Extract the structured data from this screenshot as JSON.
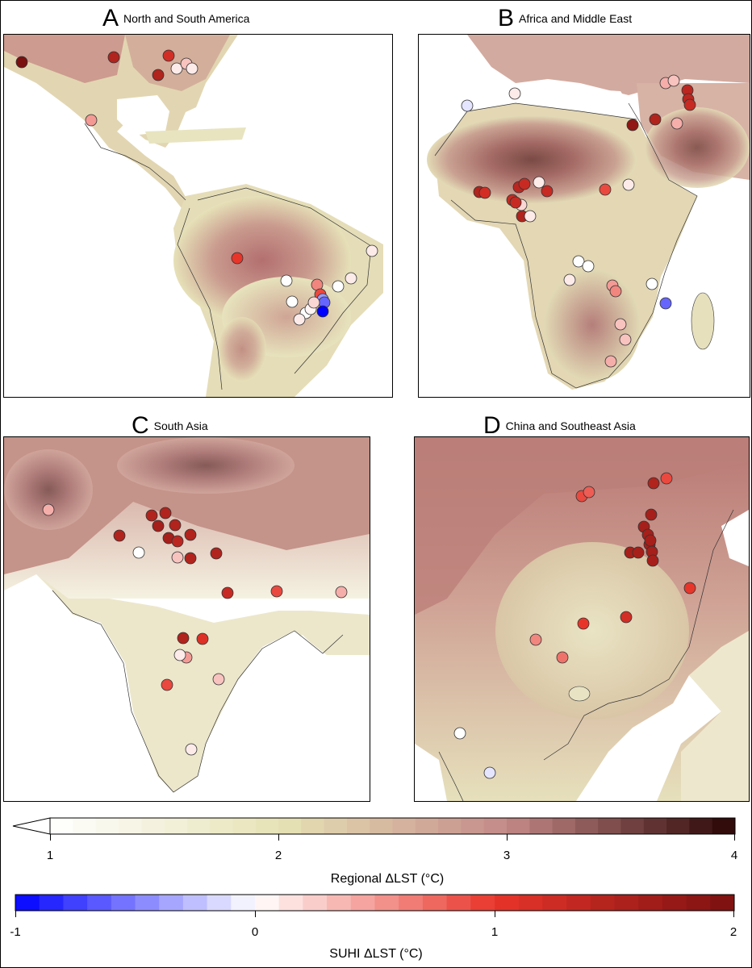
{
  "panels": [
    {
      "letter": "A",
      "title": "North and South America"
    },
    {
      "letter": "B",
      "title": "Africa and Middle East"
    },
    {
      "letter": "C",
      "title": "South Asia"
    },
    {
      "letter": "D",
      "title": "China and Southeast Asia"
    }
  ],
  "colorbars": {
    "regional": {
      "label": "Regional ΔLST (°C)",
      "ticks": [
        "1",
        "2",
        "3",
        "4"
      ],
      "range": [
        1,
        4
      ],
      "colors": [
        "#ffffff",
        "#e7e3b6",
        "#c48a88",
        "#2a0404"
      ]
    },
    "suhi": {
      "label": "SUHI ΔLST (°C)",
      "ticks": [
        "-1",
        "0",
        "1",
        "2"
      ],
      "range": [
        -1,
        2
      ],
      "colors": [
        "#0000ff",
        "#ffffff",
        "#e8352a",
        "#7a1010"
      ]
    }
  },
  "points": {
    "A": [
      2.0,
      1.5,
      1.2,
      1.5,
      0.1,
      0.3,
      0.1,
      0.5,
      1.0,
      0.1,
      0.0,
      0.1,
      0.6,
      0.9,
      0.0,
      0.0,
      -0.4,
      -0.6,
      -1.0,
      0.0,
      0.1,
      0.05,
      0.2
    ],
    "B": [
      -0.1,
      0.1,
      0.4,
      0.3,
      1.4,
      1.4,
      1.3,
      0.4,
      1.5,
      1.5,
      1.2,
      1.4,
      1.3,
      1.3,
      0.1,
      0.2,
      1.3,
      1.3,
      0.9,
      0.1,
      1.8,
      1.5,
      0.1,
      0.0,
      0.0,
      0.1,
      0.5,
      0.6,
      0.0,
      0.3,
      0.3,
      0.4,
      -0.6
    ],
    "C": [
      0.4,
      1.5,
      1.5,
      1.6,
      1.5,
      1.5,
      1.6,
      1.4,
      1.5,
      1.5,
      0.0,
      0.3,
      1.5,
      1.3,
      0.9,
      1.5,
      0.5,
      0.1,
      0.4,
      0.3,
      0.9,
      0.1,
      1.1
    ],
    "D": [
      0.9,
      0.8,
      1.5,
      0.9,
      1.6,
      1.6,
      1.6,
      1.6,
      1.6,
      1.6,
      1.6,
      1.6,
      1.6,
      1.0,
      0.6,
      1.0,
      1.2,
      0.7,
      0.0,
      -0.1
    ]
  }
}
